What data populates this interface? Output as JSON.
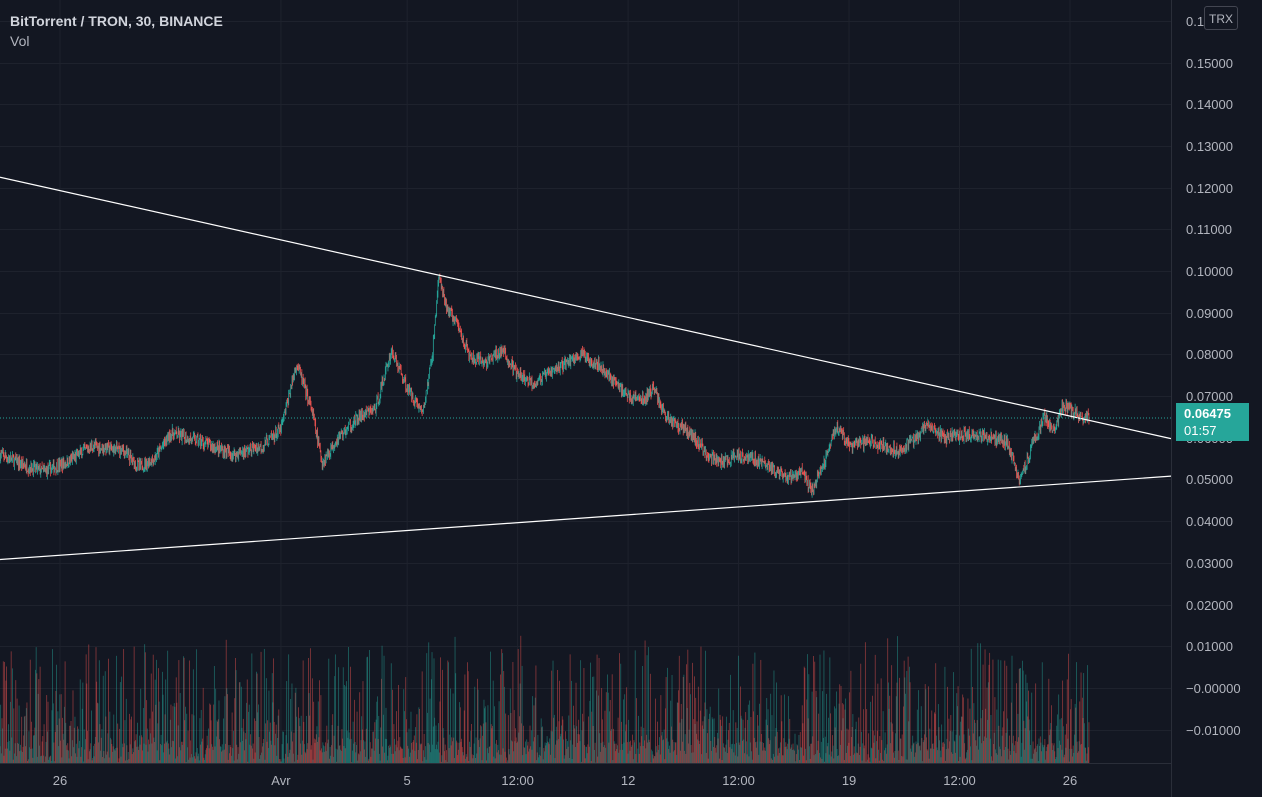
{
  "legend": {
    "symbol": "BitTorrent / TRON, 30, BINANCE",
    "volume_label": "Vol"
  },
  "currency_button": "TRX",
  "last_price": {
    "value": "0.06475",
    "countdown": "01:57"
  },
  "colors": {
    "background": "#131722",
    "up": "#26a69a",
    "down": "#ef5350",
    "grid": "#1e222d",
    "trendline": "#ffffff"
  },
  "chart_data": {
    "type": "candlestick",
    "title": "BitTorrent / TRON, 30, BINANCE",
    "price_axis": {
      "min": -0.018,
      "max": 0.165,
      "ticks": [
        0.16,
        0.15,
        0.14,
        0.13,
        0.12,
        0.11,
        0.1,
        0.09,
        0.08,
        0.07,
        0.06,
        0.05,
        0.04,
        0.03,
        0.02,
        0.01,
        0.0,
        -0.01
      ],
      "tick_labels": [
        "0.16000",
        "0.15000",
        "0.14000",
        "0.13000",
        "0.12000",
        "0.11000",
        "0.10000",
        "0.09000",
        "0.08000",
        "0.07000",
        "0.06000",
        "0.05000",
        "0.04000",
        "0.03000",
        "0.02000",
        "0.01000",
        "−0.00000",
        "−0.01000"
      ]
    },
    "time_axis": {
      "range_days": [
        -7.9,
        29.2
      ],
      "ticks": [
        {
          "label": "26",
          "day": -6
        },
        {
          "label": "Avr",
          "day": 1
        },
        {
          "label": "5",
          "day": 5
        },
        {
          "label": "12:00",
          "day": 8.5
        },
        {
          "label": "12",
          "day": 12
        },
        {
          "label": "12:00",
          "day": 15.5
        },
        {
          "label": "19",
          "day": 19
        },
        {
          "label": "12:00",
          "day": 22.5
        },
        {
          "label": "26",
          "day": 26
        }
      ]
    },
    "price_path": [
      [
        -7.9,
        0.056
      ],
      [
        -7,
        0.053
      ],
      [
        -6.5,
        0.052
      ],
      [
        -5.8,
        0.054
      ],
      [
        -5,
        0.058
      ],
      [
        -4,
        0.057
      ],
      [
        -3.5,
        0.053
      ],
      [
        -3,
        0.055
      ],
      [
        -2.5,
        0.061
      ],
      [
        -1.5,
        0.059
      ],
      [
        -0.5,
        0.056
      ],
      [
        0.4,
        0.058
      ],
      [
        1,
        0.062
      ],
      [
        1.5,
        0.078
      ],
      [
        2,
        0.066
      ],
      [
        2.3,
        0.054
      ],
      [
        2.8,
        0.06
      ],
      [
        3.5,
        0.065
      ],
      [
        4,
        0.067
      ],
      [
        4.5,
        0.081
      ],
      [
        5,
        0.072
      ],
      [
        5.5,
        0.066
      ],
      [
        5.8,
        0.08
      ],
      [
        6,
        0.099
      ],
      [
        6.2,
        0.092
      ],
      [
        6.6,
        0.087
      ],
      [
        7,
        0.079
      ],
      [
        7.5,
        0.078
      ],
      [
        8,
        0.081
      ],
      [
        8.5,
        0.075
      ],
      [
        9,
        0.073
      ],
      [
        9.8,
        0.077
      ],
      [
        10.5,
        0.08
      ],
      [
        11,
        0.078
      ],
      [
        11.5,
        0.074
      ],
      [
        12,
        0.07
      ],
      [
        12.5,
        0.069
      ],
      [
        12.8,
        0.072
      ],
      [
        13.2,
        0.065
      ],
      [
        14,
        0.061
      ],
      [
        14.5,
        0.056
      ],
      [
        15,
        0.054
      ],
      [
        15.5,
        0.056
      ],
      [
        16,
        0.055
      ],
      [
        16.5,
        0.053
      ],
      [
        17,
        0.05
      ],
      [
        17.5,
        0.052
      ],
      [
        17.8,
        0.047
      ],
      [
        18.2,
        0.054
      ],
      [
        18.6,
        0.063
      ],
      [
        19,
        0.058
      ],
      [
        19.7,
        0.059
      ],
      [
        20.5,
        0.057
      ],
      [
        21,
        0.059
      ],
      [
        21.5,
        0.063
      ],
      [
        22,
        0.06
      ],
      [
        23,
        0.061
      ],
      [
        24,
        0.059
      ],
      [
        24.4,
        0.05
      ],
      [
        24.8,
        0.058
      ],
      [
        25.2,
        0.065
      ],
      [
        25.5,
        0.062
      ],
      [
        25.8,
        0.068
      ],
      [
        26.3,
        0.065
      ],
      [
        26.6,
        0.06475
      ]
    ],
    "candle_interval": "30",
    "trendlines": [
      {
        "name": "resistance",
        "from": [
          -7.9,
          0.1225
        ],
        "to": [
          29.2,
          0.0598
        ]
      },
      {
        "name": "support",
        "from": [
          -7.9,
          0.0308
        ],
        "to": [
          29.2,
          0.0508
        ]
      }
    ],
    "current_price": 0.06475
  }
}
